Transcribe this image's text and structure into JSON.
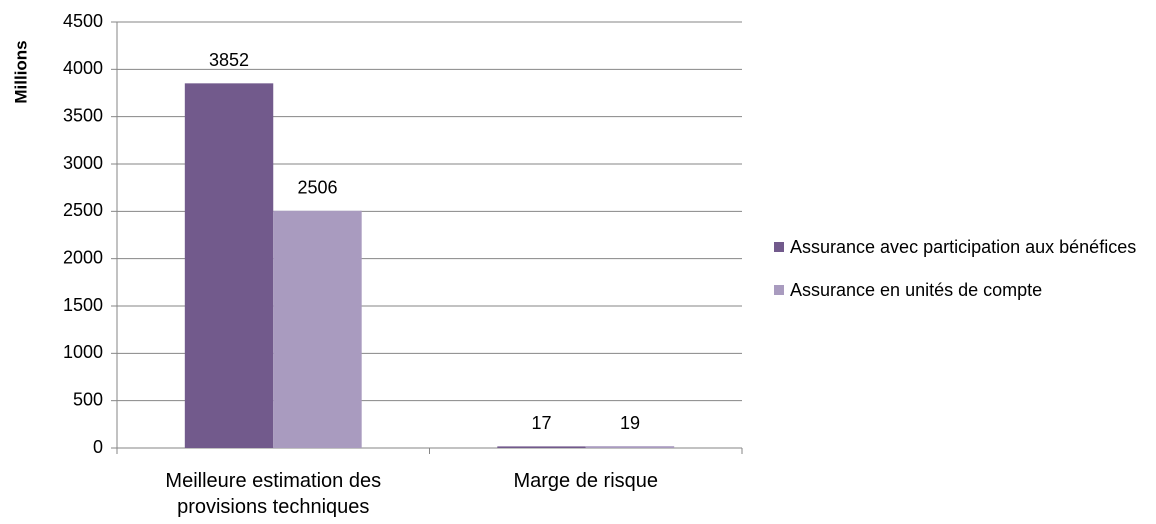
{
  "chart_data": {
    "type": "bar",
    "ylabel": "Millions",
    "categories": [
      "Meilleure estimation des provisions techniques",
      "Marge de risque"
    ],
    "series": [
      {
        "name": "Assurance avec participation aux bénéfices",
        "color": "#725a8c",
        "values": [
          3852,
          17
        ]
      },
      {
        "name": "Assurance en unités de compte",
        "color": "#a99bbf",
        "values": [
          2506,
          19
        ]
      }
    ],
    "ylim": [
      0,
      4500
    ],
    "yticks": [
      0,
      500,
      1000,
      1500,
      2000,
      2500,
      3000,
      3500,
      4000,
      4500
    ],
    "grid": true,
    "data_labels": true,
    "legend": "right"
  }
}
